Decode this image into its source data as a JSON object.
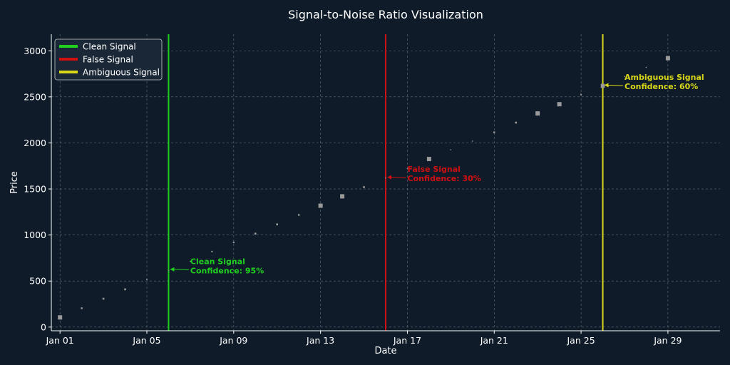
{
  "chart_data": {
    "type": "scatter",
    "title": "Signal-to-Noise Ratio Visualization",
    "xlabel": "Date",
    "ylabel": "Price",
    "xlim": [
      -0.4,
      30.4
    ],
    "ylim": [
      -40,
      3180
    ],
    "grid": true,
    "colors": {
      "background": "#0f1b29",
      "axis": "#ffffff",
      "grid": "#8a94a0",
      "points": "#9a9a9a",
      "clean": "#1fd01f",
      "false": "#d01010",
      "ambiguous": "#d8d818"
    },
    "x_ticks": [
      {
        "x": 0,
        "label": "Jan 01"
      },
      {
        "x": 4,
        "label": "Jan 05"
      },
      {
        "x": 8,
        "label": "Jan 09"
      },
      {
        "x": 12,
        "label": "Jan 13"
      },
      {
        "x": 16,
        "label": "Jan 17"
      },
      {
        "x": 20,
        "label": "Jan 21"
      },
      {
        "x": 24,
        "label": "Jan 25"
      },
      {
        "x": 28,
        "label": "Jan 29"
      }
    ],
    "y_ticks": [
      0,
      500,
      1000,
      1500,
      2000,
      2500,
      3000
    ],
    "series": [
      {
        "name": "Price",
        "points": [
          {
            "x": 0,
            "y": 105,
            "size": 3.0
          },
          {
            "x": 1,
            "y": 205,
            "size": 1.2
          },
          {
            "x": 2,
            "y": 308,
            "size": 1.3
          },
          {
            "x": 3,
            "y": 410,
            "size": 1.3
          },
          {
            "x": 4,
            "y": 515,
            "size": 0.9
          },
          {
            "x": 5,
            "y": 615,
            "size": 0.7
          },
          {
            "x": 6,
            "y": 715,
            "size": 0.7
          },
          {
            "x": 7,
            "y": 820,
            "size": 1.0
          },
          {
            "x": 8,
            "y": 920,
            "size": 1.1
          },
          {
            "x": 9,
            "y": 1015,
            "size": 1.3
          },
          {
            "x": 10,
            "y": 1115,
            "size": 1.3
          },
          {
            "x": 11,
            "y": 1218,
            "size": 1.2
          },
          {
            "x": 12,
            "y": 1318,
            "size": 3.0
          },
          {
            "x": 13,
            "y": 1420,
            "size": 3.0
          },
          {
            "x": 14,
            "y": 1520,
            "size": 1.3
          },
          {
            "x": 15,
            "y": 1620,
            "size": 0.7
          },
          {
            "x": 16,
            "y": 1720,
            "size": 0.7
          },
          {
            "x": 17,
            "y": 1825,
            "size": 3.0
          },
          {
            "x": 18,
            "y": 1925,
            "size": 0.7
          },
          {
            "x": 19,
            "y": 2020,
            "size": 0.7
          },
          {
            "x": 20,
            "y": 2115,
            "size": 1.2
          },
          {
            "x": 21,
            "y": 2220,
            "size": 1.3
          },
          {
            "x": 22,
            "y": 2320,
            "size": 3.0
          },
          {
            "x": 23,
            "y": 2420,
            "size": 3.0
          },
          {
            "x": 24,
            "y": 2525,
            "size": 1.0
          },
          {
            "x": 25,
            "y": 2620,
            "size": 2.8
          },
          {
            "x": 26,
            "y": 2720,
            "size": 0.7
          },
          {
            "x": 27,
            "y": 2820,
            "size": 0.7
          },
          {
            "x": 28,
            "y": 2920,
            "size": 3.0
          }
        ]
      }
    ],
    "signals": [
      {
        "name": "Clean Signal",
        "x": 5,
        "y": 620,
        "color": "#1fd01f",
        "annotation_line1": "Clean Signal",
        "annotation_line2": "Confidence: 95%",
        "text_x": 6.0,
        "text_y": 700
      },
      {
        "name": "False Signal",
        "x": 15,
        "y": 1620,
        "color": "#d01010",
        "annotation_line1": "False Signal",
        "annotation_line2": "Confidence: 30%",
        "text_x": 16.0,
        "text_y": 1700
      },
      {
        "name": "Ambiguous Signal",
        "x": 25,
        "y": 2620,
        "color": "#d8d818",
        "annotation_line1": "Ambiguous Signal",
        "annotation_line2": "Confidence: 60%",
        "text_x": 26.0,
        "text_y": 2700
      }
    ],
    "legend": {
      "position": "top-left",
      "entries": [
        {
          "label": "Clean Signal",
          "color": "#1fd01f"
        },
        {
          "label": "False Signal",
          "color": "#d01010"
        },
        {
          "label": "Ambiguous Signal",
          "color": "#d8d818"
        }
      ]
    }
  }
}
